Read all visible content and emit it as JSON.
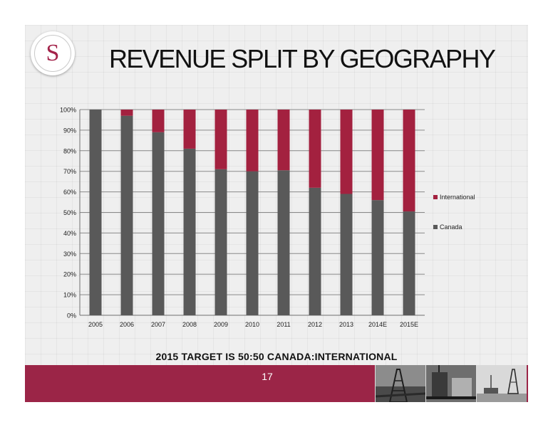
{
  "slide": {
    "logo_letter": "S",
    "title": "REVENUE SPLIT BY GEOGRAPHY",
    "subtitle": "2015 TARGET IS 50:50 CANADA:INTERNATIONAL",
    "page_number": "17",
    "brand_color": "#9b2547"
  },
  "chart_data": {
    "type": "bar",
    "stacked": true,
    "percent_stacked": true,
    "categories": [
      "2005",
      "2006",
      "2007",
      "2008",
      "2009",
      "2010",
      "2011",
      "2012",
      "2013",
      "2014E",
      "2015E"
    ],
    "series": [
      {
        "name": "Canada",
        "color": "#595959",
        "values": [
          100,
          97,
          89,
          81,
          71,
          70,
          70.5,
          62,
          59,
          56,
          50.5
        ]
      },
      {
        "name": "International",
        "color": "#a3213f",
        "values": [
          0,
          3,
          11,
          19,
          29,
          30,
          29.5,
          38,
          41,
          44,
          49.5
        ]
      }
    ],
    "ylim": [
      0,
      100
    ],
    "yticks": [
      "0%",
      "10%",
      "20%",
      "30%",
      "40%",
      "50%",
      "60%",
      "70%",
      "80%",
      "90%",
      "100%"
    ],
    "grid": true,
    "legend": {
      "placement": "right",
      "entries": [
        "International",
        "Canada"
      ]
    }
  },
  "decor": {
    "photo_icons": [
      "drilling-rig-photo-icon",
      "drilling-equipment-photo-icon",
      "rig-site-photo-icon"
    ]
  }
}
